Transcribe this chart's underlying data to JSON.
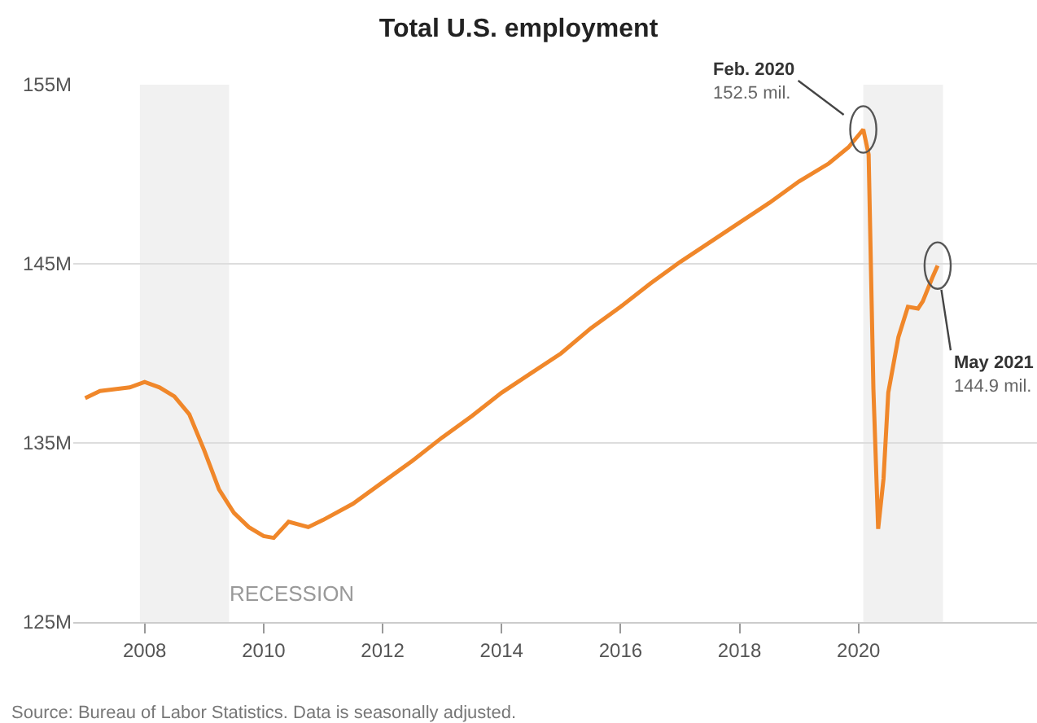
{
  "chart_data": {
    "type": "line",
    "title": "Total U.S. employment",
    "x": [
      2007.0,
      2007.25,
      2007.5,
      2007.75,
      2008.0,
      2008.25,
      2008.5,
      2008.75,
      2009.0,
      2009.25,
      2009.5,
      2009.75,
      2010.0,
      2010.17,
      2010.42,
      2010.75,
      2011.0,
      2011.5,
      2012.0,
      2012.5,
      2013.0,
      2013.5,
      2014.0,
      2014.5,
      2015.0,
      2015.5,
      2016.0,
      2016.5,
      2017.0,
      2017.5,
      2018.0,
      2018.5,
      2019.0,
      2019.5,
      2019.83,
      2020.08,
      2020.17,
      2020.25,
      2020.33,
      2020.42,
      2020.5,
      2020.67,
      2020.83,
      2021.0,
      2021.08,
      2021.25,
      2021.33
    ],
    "series": [
      {
        "color": "#f0872a",
        "values": [
          137.5,
          137.9,
          138.0,
          138.1,
          138.4,
          138.1,
          137.6,
          136.6,
          134.6,
          132.4,
          131.1,
          130.3,
          129.8,
          129.7,
          130.6,
          130.3,
          130.7,
          131.6,
          132.8,
          134.0,
          135.3,
          136.5,
          137.8,
          138.9,
          140.0,
          141.4,
          142.6,
          143.9,
          145.1,
          146.2,
          147.3,
          148.4,
          149.6,
          150.6,
          151.5,
          152.5,
          151.1,
          138.0,
          130.2,
          133.0,
          137.8,
          140.9,
          142.6,
          142.5,
          142.9,
          144.3,
          144.9
        ]
      }
    ],
    "xlim": [
      2006.8,
      2023.0
    ],
    "ylim": [
      125,
      155
    ],
    "xticks": [
      2008,
      2010,
      2012,
      2014,
      2016,
      2018,
      2020
    ],
    "yticks": [
      {
        "value": 125,
        "label": "125M"
      },
      {
        "value": 135,
        "label": "135M"
      },
      {
        "value": 145,
        "label": "145M"
      },
      {
        "value": 155,
        "label": "155M"
      }
    ],
    "grid": "y",
    "legend": false,
    "marker": "none",
    "line_style": "solid",
    "bands": [
      {
        "axis": "x",
        "from": 2007.92,
        "to": 2009.42,
        "label": "RECESSION",
        "color": "#f1f1f1"
      },
      {
        "axis": "x",
        "from": 2020.08,
        "to": 2021.42,
        "color": "#f1f1f1"
      }
    ],
    "annotations": [
      {
        "text": "Feb. 2020\n152.5 mil.",
        "x": 2020.08,
        "y": 152.5
      },
      {
        "text": "May 2021\n144.9 mil.",
        "x": 2021.33,
        "y": 144.9
      },
      "Source: Bureau of Labor Statistics. Data is seasonally adjusted."
    ]
  }
}
